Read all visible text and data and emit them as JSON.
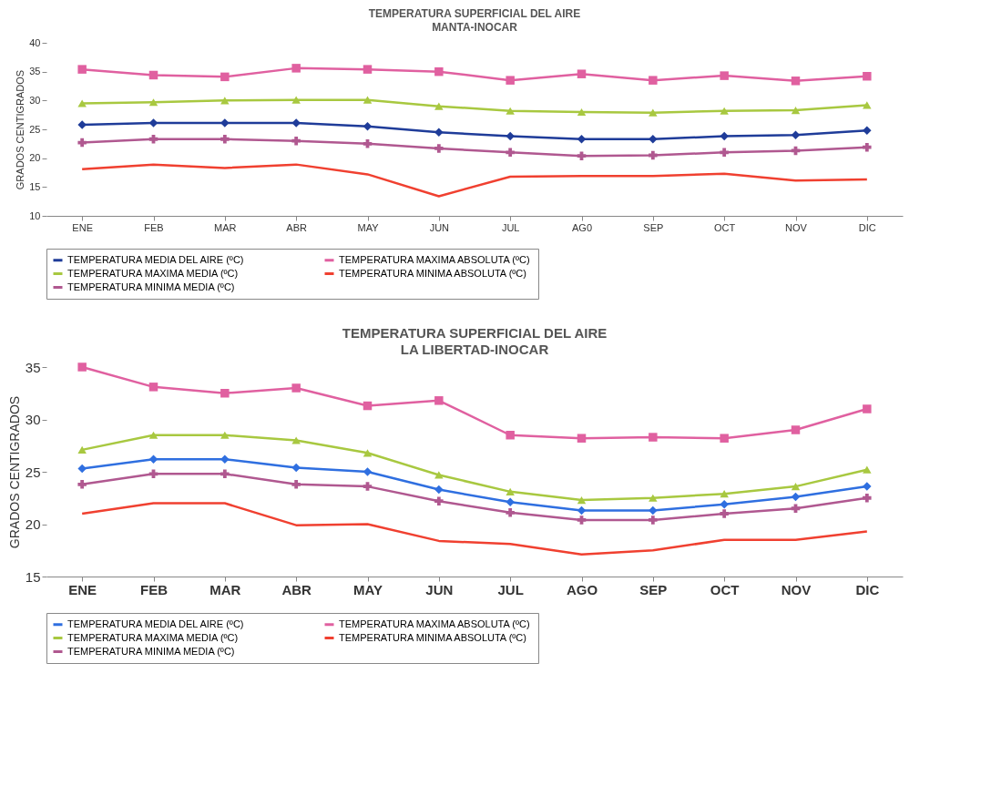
{
  "chart_data": [
    {
      "type": "line",
      "title": "TEMPERATURA SUPERFICIAL DEL AIRE",
      "subtitle": "MANTA-INOCAR",
      "ylabel": "GRADOS CENTIGRADOS",
      "categories": [
        "ENE",
        "FEB",
        "MAR",
        "ABR",
        "MAY",
        "JUN",
        "JUL",
        "AG0",
        "SEP",
        "OCT",
        "NOV",
        "DIC"
      ],
      "ylim": [
        10,
        40
      ],
      "yticks": [
        10,
        15,
        20,
        25,
        30,
        35,
        40
      ],
      "grid": false,
      "legend": "bottom",
      "series": [
        {
          "name": "TEMPERATURA MEDIA DEL AIRE (ºC)",
          "color": "#1f3c99",
          "marker": "diamond",
          "values": [
            25.8,
            26.1,
            26.1,
            26.1,
            25.5,
            24.5,
            23.8,
            23.3,
            23.3,
            23.8,
            24.0,
            24.8
          ]
        },
        {
          "name": "TEMPERATURA MAXIMA ABSOLUTA (ºC)",
          "color": "#e060a0",
          "marker": "square",
          "values": [
            35.4,
            34.4,
            34.1,
            35.6,
            35.4,
            35.0,
            33.5,
            34.6,
            33.5,
            34.3,
            33.4,
            34.2
          ]
        },
        {
          "name": "TEMPERATURA MAXIMA MEDIA (ºC)",
          "color": "#a8c840",
          "marker": "triangle",
          "values": [
            29.5,
            29.7,
            30.0,
            30.1,
            30.1,
            29.0,
            28.2,
            28.0,
            27.9,
            28.2,
            28.3,
            29.2
          ]
        },
        {
          "name": "TEMPERATURA MINIMA ABSOLUTA (ºC)",
          "color": "#f04030",
          "marker": "none",
          "values": [
            18.1,
            18.9,
            18.3,
            18.9,
            17.2,
            13.4,
            16.8,
            16.9,
            16.9,
            17.3,
            16.1,
            16.3
          ]
        },
        {
          "name": "TEMPERATURA MINIMA MEDIA (ºC)",
          "color": "#b05890",
          "marker": "cross",
          "values": [
            22.7,
            23.3,
            23.3,
            23.0,
            22.5,
            21.7,
            21.0,
            20.4,
            20.5,
            21.0,
            21.3,
            21.9
          ]
        }
      ]
    },
    {
      "type": "line",
      "title": "TEMPERATURA SUPERFICIAL DEL AIRE",
      "subtitle": "LA LIBERTAD-INOCAR",
      "ylabel": "GRADOS CENTIGRADOS",
      "categories": [
        "ENE",
        "FEB",
        "MAR",
        "ABR",
        "MAY",
        "JUN",
        "JUL",
        "AGO",
        "SEP",
        "OCT",
        "NOV",
        "DIC"
      ],
      "ylim": [
        15,
        35
      ],
      "yticks": [
        15,
        20,
        25,
        30,
        35
      ],
      "grid": false,
      "legend": "bottom",
      "series": [
        {
          "name": "TEMPERATURA MEDIA DEL AIRE (ºC)",
          "color": "#2f6fe0",
          "marker": "diamond",
          "values": [
            25.3,
            26.2,
            26.2,
            25.4,
            25.0,
            23.3,
            22.1,
            21.3,
            21.3,
            21.9,
            22.6,
            23.6
          ]
        },
        {
          "name": "TEMPERATURA MAXIMA ABSOLUTA (ºC)",
          "color": "#e060a0",
          "marker": "square",
          "values": [
            35.0,
            33.1,
            32.5,
            33.0,
            31.3,
            31.8,
            28.5,
            28.2,
            28.3,
            28.2,
            29.0,
            31.0
          ]
        },
        {
          "name": "TEMPERATURA MAXIMA MEDIA (ºC)",
          "color": "#a8c840",
          "marker": "triangle",
          "values": [
            27.1,
            28.5,
            28.5,
            28.0,
            26.8,
            24.7,
            23.1,
            22.3,
            22.5,
            22.9,
            23.6,
            25.2
          ]
        },
        {
          "name": "TEMPERATURA MINIMA ABSOLUTA (ºC)",
          "color": "#f04030",
          "marker": "none",
          "values": [
            21.0,
            22.0,
            22.0,
            19.9,
            20.0,
            18.4,
            18.1,
            17.1,
            17.5,
            18.5,
            18.5,
            19.3
          ]
        },
        {
          "name": "TEMPERATURA MINIMA MEDIA (ºC)",
          "color": "#b05890",
          "marker": "cross",
          "values": [
            23.8,
            24.8,
            24.8,
            23.8,
            23.6,
            22.2,
            21.1,
            20.4,
            20.4,
            21.0,
            21.5,
            22.5
          ]
        }
      ]
    }
  ]
}
